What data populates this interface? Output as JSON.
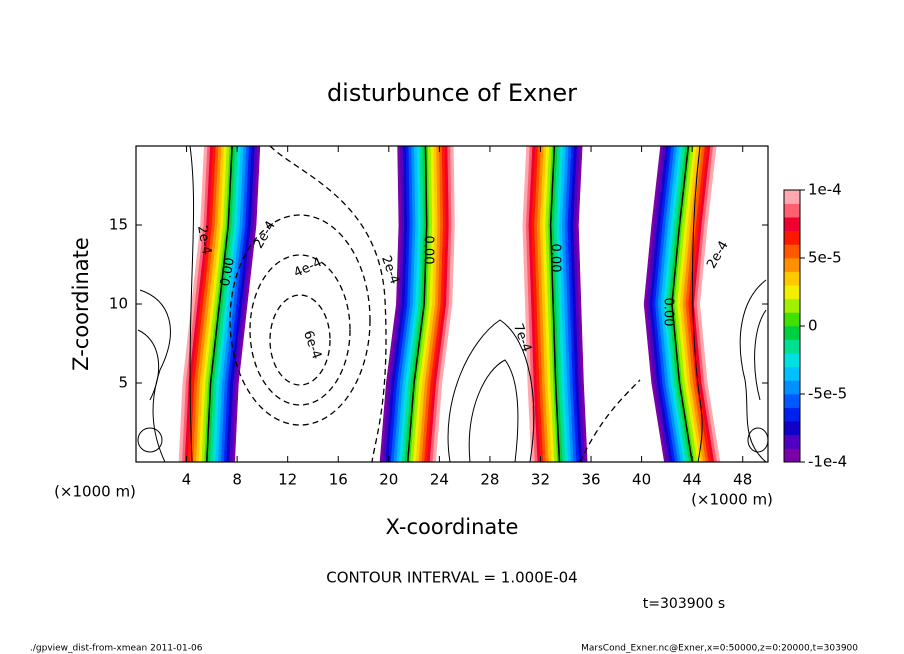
{
  "chart_data": {
    "type": "contour",
    "title": "disturbunce of Exner",
    "x_label": "X-coordinate",
    "y_label": "Z-coordinate",
    "x_unit": "(×1000 m)",
    "xlim": [
      0,
      50
    ],
    "xticks": [
      4,
      8,
      12,
      16,
      20,
      24,
      28,
      32,
      36,
      40,
      44,
      48
    ],
    "ylim": [
      0,
      20
    ],
    "yticks": [
      5,
      10,
      15
    ],
    "fronts": [
      {
        "z": [
          0,
          5,
          10,
          15,
          20
        ],
        "x": [
          5.6,
          5.9,
          6.6,
          7.3,
          7.6
        ],
        "orientation": "positive-left"
      },
      {
        "z": [
          0,
          5,
          10,
          15,
          20
        ],
        "x": [
          21.5,
          22.0,
          22.8,
          23.0,
          22.9
        ],
        "orientation": "negative-left"
      },
      {
        "z": [
          0,
          5,
          10,
          15,
          20
        ],
        "x": [
          33.5,
          33.2,
          33.0,
          32.8,
          33.1
        ],
        "orientation": "positive-left"
      },
      {
        "z": [
          0,
          5,
          10,
          15,
          20
        ],
        "x": [
          44.0,
          43.0,
          42.4,
          43.0,
          43.7
        ],
        "orientation": "negative-left"
      }
    ],
    "contour_labels": [
      "2e-4",
      "0.00",
      "2e-4",
      "4e-4",
      "6e-4",
      "2e-4",
      "0.00",
      "0.00",
      "7e-4",
      "0.00",
      "2e-4"
    ],
    "colorbar": {
      "clim": [
        -0.0001,
        0.0001
      ],
      "ticks": [
        {
          "value": 0.0001,
          "label": "1e-4"
        },
        {
          "value": 5e-05,
          "label": "5e-5"
        },
        0,
        {
          "value": -5e-05,
          "label": "-5e-5"
        },
        {
          "value": -0.0001,
          "label": "-1e-4"
        }
      ],
      "colors": [
        "#7a00a8",
        "#5000c0",
        "#1000c8",
        "#0020f0",
        "#0058ff",
        "#0090ff",
        "#00c0ff",
        "#00e0e0",
        "#00e090",
        "#00d040",
        "#40e000",
        "#a0f000",
        "#f0f000",
        "#ffc800",
        "#ff9000",
        "#ff5800",
        "#ff1800",
        "#f00030",
        "#ff6070",
        "#ffa8b0"
      ]
    },
    "contour_interval": "CONTOUR INTERVAL = 1.000E-04",
    "time_label": "t=303900 s",
    "footer_left": "./gpview_dist-from-xmean  2011-01-06",
    "footer_right": "MarsCond_Exner.nc@Exner,x=0:50000,z=0:20000,t=303900"
  }
}
